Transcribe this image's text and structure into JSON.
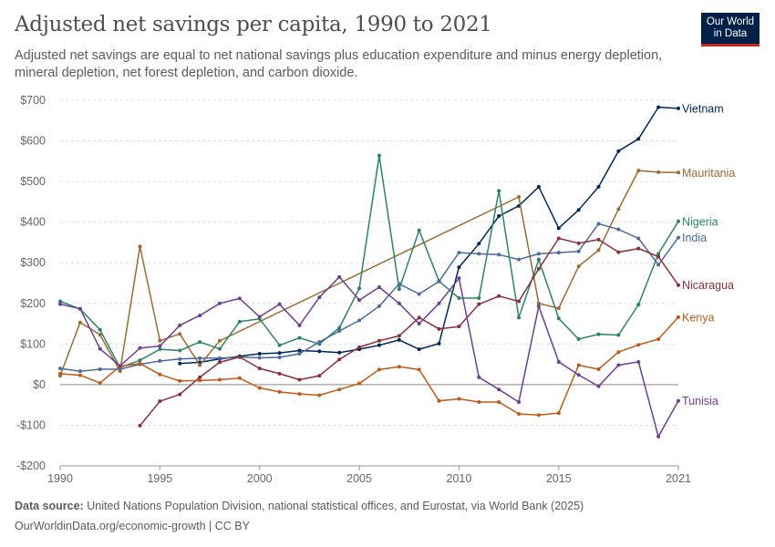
{
  "header": {
    "title": "Adjusted net savings per capita, 1990 to 2021",
    "subtitle": "Adjusted net savings are equal to net national savings plus education expenditure and minus energy depletion, mineral depletion, net forest depletion, and carbon dioxide."
  },
  "logo": {
    "line1": "Our World",
    "line2": "in Data",
    "bg_color": "#002147",
    "accent_color": "#ce261e"
  },
  "footer": {
    "source_label": "Data source:",
    "source_text": "United Nations Population Division, national statistical offices, and Eurostat, via World Bank (2025)",
    "link_text": "OurWorldinData.org/economic-growth | CC BY"
  },
  "chart_data": {
    "type": "line",
    "title": "Adjusted net savings per capita, 1990 to 2021",
    "xlabel": "",
    "ylabel": "",
    "xlim": [
      1990,
      2021
    ],
    "ylim": [
      -200,
      700
    ],
    "x_ticks": [
      1990,
      1995,
      2000,
      2005,
      2010,
      2015,
      2021
    ],
    "y_ticks": [
      -200,
      -100,
      0,
      100,
      200,
      300,
      400,
      500,
      600,
      700
    ],
    "y_tick_labels": [
      "-$200",
      "-$100",
      "$0",
      "$100",
      "$200",
      "$300",
      "$400",
      "$500",
      "$600",
      "$700"
    ],
    "x_tick_labels": [
      "1990",
      "1995",
      "2000",
      "2005",
      "2010",
      "2015",
      "2021"
    ],
    "grid": "horizontal dashed",
    "legend": "inline labels at line ends (right)",
    "series": [
      {
        "name": "Vietnam",
        "color": "#00295b",
        "label_value": 680,
        "points": [
          [
            1996,
            52
          ],
          [
            1997,
            55
          ],
          [
            1998,
            63
          ],
          [
            1999,
            70
          ],
          [
            2000,
            76
          ],
          [
            2001,
            78
          ],
          [
            2002,
            84
          ],
          [
            2003,
            82
          ],
          [
            2004,
            79
          ],
          [
            2005,
            87
          ],
          [
            2006,
            97
          ],
          [
            2007,
            110
          ],
          [
            2008,
            87
          ],
          [
            2009,
            101
          ],
          [
            2010,
            289
          ],
          [
            2011,
            347
          ],
          [
            2012,
            415
          ],
          [
            2013,
            440
          ],
          [
            2014,
            487
          ],
          [
            2015,
            385
          ],
          [
            2016,
            430
          ],
          [
            2017,
            487
          ],
          [
            2018,
            575
          ],
          [
            2019,
            605
          ],
          [
            2020,
            683
          ],
          [
            2021,
            680
          ]
        ]
      },
      {
        "name": "Mauritania",
        "color": "#9a6b32",
        "label_value": 522,
        "points": [
          [
            1990,
            22
          ],
          [
            1991,
            153
          ],
          [
            1992,
            123
          ],
          [
            1993,
            33
          ],
          [
            1994,
            340
          ],
          [
            1995,
            108
          ],
          [
            1996,
            125
          ],
          [
            1997,
            48
          ],
          [
            1998,
            108
          ],
          [
            2013,
            462
          ],
          [
            2014,
            200
          ],
          [
            2015,
            188
          ],
          [
            2016,
            291
          ],
          [
            2017,
            331
          ],
          [
            2018,
            432
          ],
          [
            2019,
            527
          ],
          [
            2020,
            523
          ],
          [
            2021,
            522
          ]
        ]
      },
      {
        "name": "Nigeria",
        "color": "#2c8465",
        "label_value": 402,
        "points": [
          [
            1990,
            205
          ],
          [
            1991,
            186
          ],
          [
            1992,
            135
          ],
          [
            1993,
            42
          ],
          [
            1994,
            60
          ],
          [
            1995,
            87
          ],
          [
            1996,
            84
          ],
          [
            1997,
            105
          ],
          [
            1998,
            88
          ],
          [
            1999,
            155
          ],
          [
            2000,
            162
          ],
          [
            2001,
            97
          ],
          [
            2002,
            115
          ],
          [
            2003,
            100
          ],
          [
            2004,
            140
          ],
          [
            2005,
            237
          ],
          [
            2006,
            564
          ],
          [
            2007,
            235
          ],
          [
            2008,
            380
          ],
          [
            2009,
            255
          ],
          [
            2010,
            213
          ],
          [
            2011,
            213
          ],
          [
            2012,
            477
          ],
          [
            2013,
            165
          ],
          [
            2014,
            308
          ],
          [
            2015,
            163
          ],
          [
            2016,
            112
          ],
          [
            2017,
            124
          ],
          [
            2018,
            122
          ],
          [
            2019,
            197
          ],
          [
            2020,
            322
          ],
          [
            2021,
            402
          ]
        ]
      },
      {
        "name": "India",
        "color": "#4c6a9c",
        "label_value": 362,
        "points": [
          [
            1990,
            40
          ],
          [
            1991,
            33
          ],
          [
            1992,
            38
          ],
          [
            1993,
            38
          ],
          [
            1994,
            50
          ],
          [
            1995,
            58
          ],
          [
            1996,
            63
          ],
          [
            1997,
            65
          ],
          [
            1998,
            65
          ],
          [
            1999,
            68
          ],
          [
            2000,
            66
          ],
          [
            2001,
            67
          ],
          [
            2002,
            76
          ],
          [
            2003,
            105
          ],
          [
            2004,
            132
          ],
          [
            2005,
            158
          ],
          [
            2006,
            193
          ],
          [
            2007,
            248
          ],
          [
            2008,
            223
          ],
          [
            2009,
            254
          ],
          [
            2010,
            325
          ],
          [
            2011,
            322
          ],
          [
            2012,
            320
          ],
          [
            2013,
            308
          ],
          [
            2014,
            322
          ],
          [
            2015,
            325
          ],
          [
            2016,
            328
          ],
          [
            2017,
            396
          ],
          [
            2018,
            382
          ],
          [
            2019,
            360
          ],
          [
            2020,
            295
          ],
          [
            2021,
            362
          ]
        ]
      },
      {
        "name": "Nicaragua",
        "color": "#883039",
        "label_value": 245,
        "points": [
          [
            1994,
            -101
          ],
          [
            1995,
            -41
          ],
          [
            1996,
            -24
          ],
          [
            1997,
            18
          ],
          [
            1998,
            55
          ],
          [
            1999,
            68
          ],
          [
            2000,
            40
          ],
          [
            2001,
            27
          ],
          [
            2002,
            12
          ],
          [
            2003,
            22
          ],
          [
            2004,
            62
          ],
          [
            2005,
            92
          ],
          [
            2006,
            108
          ],
          [
            2007,
            120
          ],
          [
            2008,
            165
          ],
          [
            2009,
            137
          ],
          [
            2010,
            143
          ],
          [
            2011,
            198
          ],
          [
            2012,
            218
          ],
          [
            2013,
            205
          ],
          [
            2014,
            285
          ],
          [
            2015,
            360
          ],
          [
            2016,
            348
          ],
          [
            2017,
            357
          ],
          [
            2018,
            326
          ],
          [
            2019,
            335
          ],
          [
            2020,
            315
          ],
          [
            2021,
            245
          ]
        ]
      },
      {
        "name": "Kenya",
        "color": "#c05917",
        "label_value": 166,
        "points": [
          [
            1990,
            27
          ],
          [
            1991,
            23
          ],
          [
            1992,
            4
          ],
          [
            1993,
            45
          ],
          [
            1994,
            52
          ],
          [
            1995,
            25
          ],
          [
            1996,
            9
          ],
          [
            1997,
            10
          ],
          [
            1998,
            12
          ],
          [
            1999,
            16
          ],
          [
            2000,
            -8
          ],
          [
            2001,
            -18
          ],
          [
            2002,
            -23
          ],
          [
            2003,
            -26
          ],
          [
            2004,
            -12
          ],
          [
            2005,
            3
          ],
          [
            2006,
            37
          ],
          [
            2007,
            44
          ],
          [
            2008,
            37
          ],
          [
            2009,
            -40
          ],
          [
            2010,
            -35
          ],
          [
            2011,
            -43
          ],
          [
            2012,
            -43
          ],
          [
            2013,
            -72
          ],
          [
            2014,
            -75
          ],
          [
            2015,
            -70
          ],
          [
            2016,
            48
          ],
          [
            2017,
            38
          ],
          [
            2018,
            80
          ],
          [
            2019,
            98
          ],
          [
            2020,
            112
          ],
          [
            2021,
            166
          ]
        ]
      },
      {
        "name": "Tunisia",
        "color": "#6d3e91",
        "label_value": -40,
        "points": [
          [
            1990,
            198
          ],
          [
            1991,
            187
          ],
          [
            1992,
            88
          ],
          [
            1993,
            46
          ],
          [
            1994,
            90
          ],
          [
            1995,
            95
          ],
          [
            1996,
            146
          ],
          [
            1997,
            170
          ],
          [
            1998,
            200
          ],
          [
            1999,
            212
          ],
          [
            2000,
            167
          ],
          [
            2001,
            198
          ],
          [
            2002,
            146
          ],
          [
            2003,
            215
          ],
          [
            2004,
            265
          ],
          [
            2005,
            208
          ],
          [
            2006,
            240
          ],
          [
            2007,
            200
          ],
          [
            2008,
            150
          ],
          [
            2009,
            200
          ],
          [
            2010,
            262
          ],
          [
            2011,
            18
          ],
          [
            2012,
            -12
          ],
          [
            2013,
            -43
          ],
          [
            2014,
            193
          ],
          [
            2015,
            56
          ],
          [
            2016,
            24
          ],
          [
            2017,
            -4
          ],
          [
            2018,
            48
          ],
          [
            2019,
            56
          ],
          [
            2020,
            -128
          ],
          [
            2021,
            -40
          ]
        ]
      }
    ]
  }
}
